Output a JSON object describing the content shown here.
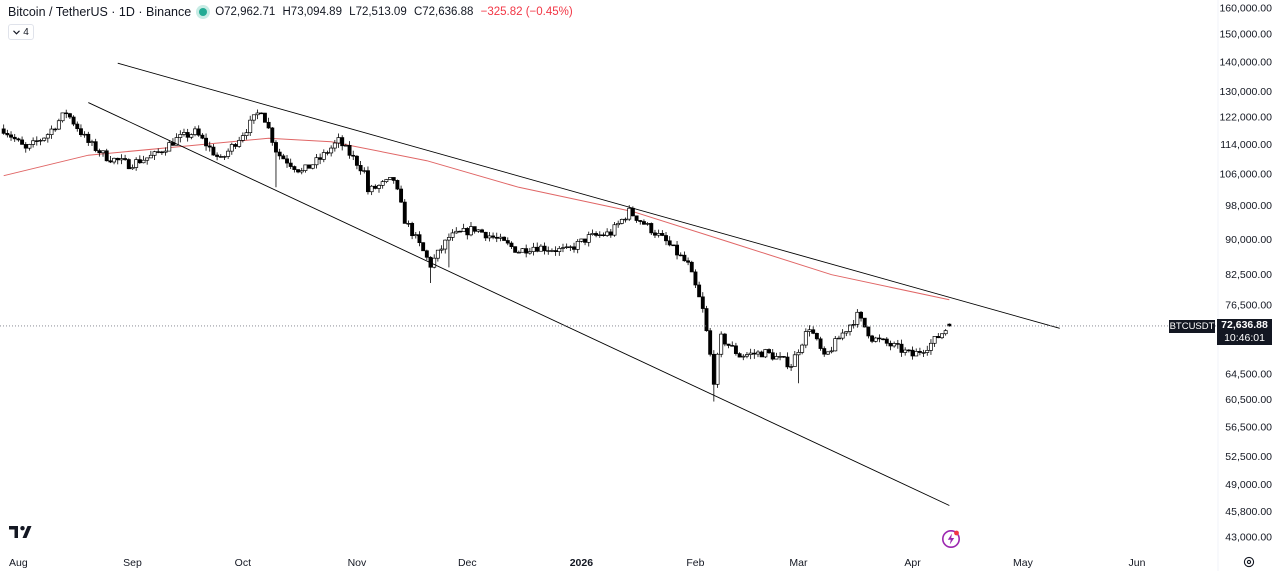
{
  "header": {
    "title": "Bitcoin / TetherUS · 1D · Binance",
    "open": "O72,962.71",
    "high": "H73,094.89",
    "low": "L72,513.09",
    "close": "C72,636.88",
    "change": "−325.82 (−0.45%)",
    "change_color": "#f23645"
  },
  "indicators_toggle": {
    "count": "4",
    "icon": "chevron-down-icon"
  },
  "price_tag": {
    "symbol": "BTCUSDT",
    "price": "72,636.88",
    "countdown": "10:46:01"
  },
  "colors": {
    "candle_fill_up": "#ffffff",
    "candle_fill_down": "#000000",
    "candle_stroke": "#000000",
    "ma_line": "#e06666",
    "trendline": "#000000",
    "price_line": "#787b86"
  },
  "chart_data": {
    "type": "candlestick",
    "title": "",
    "scale": "log",
    "x_range": [
      "2025-07-28",
      "2026-06-08"
    ],
    "y_tick_labels": [
      "160,000.00",
      "150,000.00",
      "140,000.00",
      "130,000.00",
      "122,000.00",
      "114,000.00",
      "106,000.00",
      "98,000.00",
      "90,000.00",
      "82,500.00",
      "76,500.00",
      "72,636.88",
      "64,500.00",
      "60,500.00",
      "56,500.00",
      "52,500.00",
      "49,000.00",
      "45,800.00",
      "43,000.00"
    ],
    "y_tick_values": [
      160000,
      150000,
      140000,
      130000,
      122000,
      114000,
      106000,
      98000,
      90000,
      82500,
      76500,
      72636.88,
      64500,
      60500,
      56500,
      52500,
      49000,
      45800,
      43000
    ],
    "x_tick_labels": [
      "Aug",
      "Sep",
      "Oct",
      "Nov",
      "Dec",
      "2026",
      "Feb",
      "Mar",
      "Apr",
      "May",
      "Jun"
    ],
    "x_tick_dates": [
      "2025-08-01",
      "2025-09-01",
      "2025-10-01",
      "2025-11-01",
      "2025-12-01",
      "2026-01-01",
      "2026-02-01",
      "2026-03-01",
      "2026-04-01",
      "2026-05-01",
      "2026-06-01"
    ],
    "last_price": 72636.88,
    "anchors": [
      [
        "2025-07-28",
        118500
      ],
      [
        "2025-08-03",
        112500
      ],
      [
        "2025-08-09",
        117000
      ],
      [
        "2025-08-14",
        123500
      ],
      [
        "2025-08-20",
        114500
      ],
      [
        "2025-08-25",
        110500
      ],
      [
        "2025-08-31",
        108500
      ],
      [
        "2025-09-07",
        111000
      ],
      [
        "2025-09-13",
        115500
      ],
      [
        "2025-09-18",
        117500
      ],
      [
        "2025-09-25",
        109500
      ],
      [
        "2025-10-02",
        118500
      ],
      [
        "2025-10-06",
        124500
      ],
      [
        "2025-10-10",
        112500
      ],
      [
        "2025-10-11",
        111000
      ],
      [
        "2025-10-17",
        106500
      ],
      [
        "2025-10-22",
        110000
      ],
      [
        "2025-10-27",
        115000
      ],
      [
        "2025-11-03",
        106500
      ],
      [
        "2025-11-04",
        101500
      ],
      [
        "2025-11-11",
        104500
      ],
      [
        "2025-11-14",
        94500
      ],
      [
        "2025-11-21",
        84500
      ],
      [
        "2025-11-26",
        90500
      ],
      [
        "2025-12-03",
        92500
      ],
      [
        "2025-12-08",
        90500
      ],
      [
        "2025-12-15",
        87500
      ],
      [
        "2025-12-19",
        88500
      ],
      [
        "2025-12-28",
        87500
      ],
      [
        "2026-01-03",
        90500
      ],
      [
        "2026-01-09",
        91500
      ],
      [
        "2026-01-14",
        96500
      ],
      [
        "2026-01-19",
        93000
      ],
      [
        "2026-01-24",
        89500
      ],
      [
        "2026-01-30",
        84500
      ],
      [
        "2026-02-03",
        75500
      ],
      [
        "2026-02-06",
        63500
      ],
      [
        "2026-02-08",
        70500
      ],
      [
        "2026-02-13",
        67500
      ],
      [
        "2026-02-20",
        68000
      ],
      [
        "2026-02-27",
        66000
      ],
      [
        "2026-03-04",
        72500
      ],
      [
        "2026-03-08",
        67000
      ],
      [
        "2026-03-12",
        70500
      ],
      [
        "2026-03-17",
        74500
      ],
      [
        "2026-03-21",
        70500
      ],
      [
        "2026-03-27",
        69000
      ],
      [
        "2026-04-01",
        67500
      ],
      [
        "2026-04-06",
        69500
      ],
      [
        "2026-04-11",
        72636.88
      ]
    ],
    "moving_average": [
      [
        "2025-07-28",
        105500
      ],
      [
        "2025-08-20",
        111000
      ],
      [
        "2025-09-15",
        113500
      ],
      [
        "2025-10-08",
        115800
      ],
      [
        "2025-10-25",
        114800
      ],
      [
        "2025-11-20",
        109500
      ],
      [
        "2025-12-15",
        102500
      ],
      [
        "2026-01-15",
        96500
      ],
      [
        "2026-02-10",
        89500
      ],
      [
        "2026-03-10",
        82500
      ],
      [
        "2026-04-11",
        77500
      ]
    ],
    "trendlines": [
      {
        "from": [
          "2025-08-28",
          139500
        ],
        "to": [
          "2026-05-11",
          72200
        ]
      },
      {
        "from": [
          "2025-08-20",
          126500
        ],
        "to": [
          "2026-04-11",
          46500
        ]
      }
    ]
  }
}
